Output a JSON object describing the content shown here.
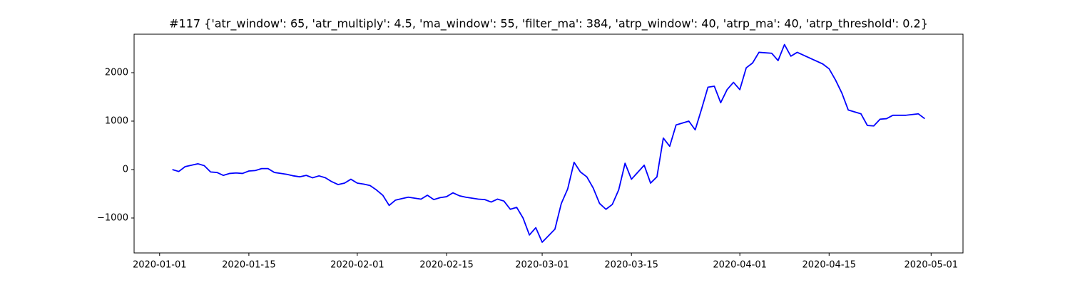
{
  "chart_data": {
    "type": "line",
    "title": "#117 {'atr_window': 65, 'atr_multiply': 4.5, 'ma_window': 55, 'filter_ma': 384, 'atrp_window': 40, 'atrp_ma': 40, 'atrp_threshold': 0.2}",
    "color": "#0000ff",
    "x": [
      "2020-01-03",
      "2020-01-04",
      "2020-01-05",
      "2020-01-06",
      "2020-01-07",
      "2020-01-08",
      "2020-01-09",
      "2020-01-10",
      "2020-01-11",
      "2020-01-12",
      "2020-01-13",
      "2020-01-14",
      "2020-01-15",
      "2020-01-16",
      "2020-01-17",
      "2020-01-18",
      "2020-01-19",
      "2020-01-20",
      "2020-01-21",
      "2020-01-22",
      "2020-01-23",
      "2020-01-24",
      "2020-01-25",
      "2020-01-26",
      "2020-01-27",
      "2020-01-28",
      "2020-01-29",
      "2020-01-30",
      "2020-01-31",
      "2020-02-01",
      "2020-02-02",
      "2020-02-03",
      "2020-02-04",
      "2020-02-05",
      "2020-02-06",
      "2020-02-07",
      "2020-02-08",
      "2020-02-09",
      "2020-02-10",
      "2020-02-11",
      "2020-02-12",
      "2020-02-13",
      "2020-02-14",
      "2020-02-15",
      "2020-02-16",
      "2020-02-17",
      "2020-02-18",
      "2020-02-19",
      "2020-02-20",
      "2020-02-21",
      "2020-02-22",
      "2020-02-23",
      "2020-02-24",
      "2020-02-25",
      "2020-02-26",
      "2020-02-27",
      "2020-02-28",
      "2020-02-29",
      "2020-03-01",
      "2020-03-03",
      "2020-03-04",
      "2020-03-05",
      "2020-03-06",
      "2020-03-07",
      "2020-03-08",
      "2020-03-09",
      "2020-03-10",
      "2020-03-11",
      "2020-03-12",
      "2020-03-13",
      "2020-03-14",
      "2020-03-15",
      "2020-03-17",
      "2020-03-18",
      "2020-03-19",
      "2020-03-20",
      "2020-03-21",
      "2020-03-22",
      "2020-03-24",
      "2020-03-25",
      "2020-03-26",
      "2020-03-27",
      "2020-03-28",
      "2020-03-29",
      "2020-03-30",
      "2020-03-31",
      "2020-04-01",
      "2020-04-02",
      "2020-04-03",
      "2020-04-04",
      "2020-04-06",
      "2020-04-07",
      "2020-04-08",
      "2020-04-09",
      "2020-04-10",
      "2020-04-14",
      "2020-04-15",
      "2020-04-16",
      "2020-04-17",
      "2020-04-18",
      "2020-04-20",
      "2020-04-21",
      "2020-04-22",
      "2020-04-23",
      "2020-04-24",
      "2020-04-25",
      "2020-04-27",
      "2020-04-29",
      "2020-04-30"
    ],
    "values": [
      0,
      -40,
      60,
      90,
      120,
      80,
      -50,
      -60,
      -120,
      -80,
      -70,
      -80,
      -30,
      -20,
      20,
      20,
      -60,
      -80,
      -100,
      -130,
      -150,
      -120,
      -170,
      -130,
      -170,
      -250,
      -310,
      -280,
      -200,
      -280,
      -300,
      -330,
      -420,
      -530,
      -740,
      -630,
      -600,
      -570,
      -590,
      -610,
      -530,
      -620,
      -580,
      -560,
      -480,
      -540,
      -570,
      -590,
      -610,
      -620,
      -670,
      -610,
      -650,
      -820,
      -780,
      -1000,
      -1350,
      -1200,
      -1500,
      -1230,
      -700,
      -400,
      150,
      -50,
      -150,
      -380,
      -700,
      -820,
      -720,
      -420,
      130,
      -200,
      90,
      -280,
      -150,
      650,
      480,
      920,
      1000,
      820,
      1250,
      1700,
      1720,
      1380,
      1650,
      1800,
      1650,
      2100,
      2200,
      2420,
      2400,
      2250,
      2580,
      2340,
      2420,
      2180,
      2080,
      1850,
      1580,
      1230,
      1150,
      910,
      900,
      1040,
      1050,
      1120,
      1120,
      1150,
      1050
    ],
    "xlim": [
      "2019-12-28",
      "2020-05-06"
    ],
    "xticks": [
      "2020-01-01",
      "2020-01-15",
      "2020-02-01",
      "2020-02-15",
      "2020-03-01",
      "2020-03-15",
      "2020-04-01",
      "2020-04-15",
      "2020-05-01"
    ],
    "ylim": [
      -1721,
      2794
    ],
    "yticks": [
      {
        "value": -1000,
        "label": "−1000"
      },
      0,
      1000,
      2000
    ]
  }
}
